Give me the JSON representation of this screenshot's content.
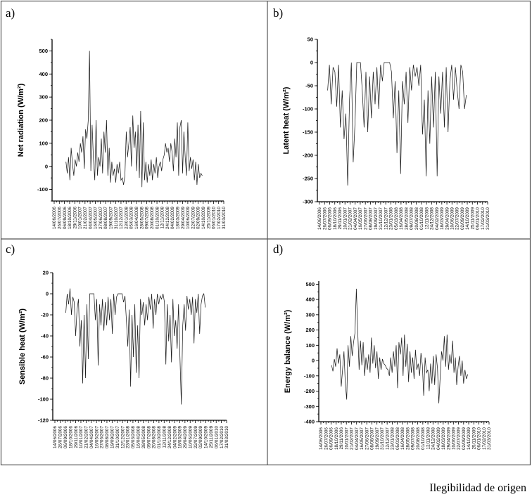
{
  "caption": "Ilegibilidad de origen",
  "chart_data": [
    {
      "type": "line",
      "panel_label": "a)",
      "title": "",
      "ylabel": "Net radiation (W/m²)",
      "ylim": [
        -150,
        550
      ],
      "yticks": [
        "-100",
        "0",
        "100",
        "200",
        "300",
        "400",
        "500"
      ],
      "ytick_values": [
        -100,
        0,
        100,
        200,
        300,
        400,
        500
      ],
      "xtick_labels": [
        "14/06/2006",
        "26/07/2006",
        "06/09/2006",
        "18/10/2006",
        "29/11/2006",
        "10/01/2007",
        "21/02/2007",
        "04/04/2007",
        "16/05/2007",
        "27/06/2007",
        "08/08/2007",
        "19/09/2007",
        "31/10/2007",
        "12/12/2007",
        "23/01/2008",
        "05/03/2008",
        "16/04/2008",
        "28/05/2008",
        "09/07/2008",
        "20/08/2008",
        "01/10/2008",
        "12/11/2008",
        "24/12/2008",
        "04/02/2009",
        "18/03/2009",
        "29/04/2009",
        "10/06/2009",
        "22/07/2009",
        "02/09/2009",
        "14/10/2009",
        "25/11/2009",
        "06/01/2010",
        "17/02/2010",
        "31/03/2010"
      ],
      "x_start": "2006-09-18",
      "x_end": "2009-10-06",
      "values": [
        20,
        -30,
        40,
        -60,
        80,
        10,
        -40,
        30,
        0,
        60,
        20,
        100,
        60,
        130,
        -10,
        160,
        120,
        200,
        500,
        -20,
        180,
        30,
        -60,
        200,
        -40,
        40,
        0,
        120,
        -30,
        150,
        60,
        200,
        -40,
        80,
        -70,
        20,
        -40,
        -10,
        -70,
        10,
        -30,
        20,
        -60,
        -50,
        -80,
        -40,
        150,
        40,
        100,
        170,
        0,
        220,
        80,
        150,
        -20,
        180,
        -50,
        240,
        -90,
        190,
        -60,
        20,
        -70,
        10,
        -40,
        30,
        -60,
        10,
        -30,
        40,
        -50,
        0,
        20,
        -20,
        30,
        50,
        100,
        60,
        80,
        20,
        100,
        60,
        -20,
        120,
        40,
        190,
        -40,
        170,
        200,
        -30,
        150,
        40,
        -40,
        190,
        -20,
        40,
        -10,
        30,
        -60,
        20,
        -80,
        10,
        -50,
        -30,
        -40
      ]
    },
    {
      "type": "line",
      "panel_label": "b)",
      "title": "",
      "ylabel": "Latent heat (W/m²)",
      "ylim": [
        -300,
        50
      ],
      "yticks": [
        "-300",
        "-250",
        "-200",
        "-150",
        "-100",
        "-50",
        "0",
        "50"
      ],
      "ytick_values": [
        -300,
        -250,
        -200,
        -150,
        -100,
        -50,
        0,
        50
      ],
      "xtick_labels": [
        "14/06/2006",
        "26/07/2006",
        "06/09/2006",
        "18/10/2006",
        "29/11/2006",
        "10/01/2007",
        "21/02/2007",
        "04/04/2007",
        "16/05/2007",
        "27/06/2007",
        "08/08/2007",
        "19/09/2007",
        "31/10/2007",
        "12/12/2007",
        "23/01/2008",
        "05/03/2008",
        "16/04/2008",
        "28/05/2008",
        "09/07/2008",
        "20/08/2008",
        "01/10/2008",
        "12/11/2008",
        "24/12/2008",
        "04/02/2009",
        "18/03/2009",
        "29/04/2009",
        "10/06/2009",
        "22/07/2009",
        "02/09/2009",
        "14/10/2009",
        "25/11/2009",
        "06/01/2010",
        "17/02/2010",
        "31/03/2010"
      ],
      "x_start": "2006-08-20",
      "x_end": "2009-10-06",
      "values": [
        -60,
        -5,
        -90,
        -10,
        -20,
        -95,
        -5,
        -140,
        -60,
        -165,
        -110,
        -265,
        -80,
        0,
        -215,
        -130,
        0,
        0,
        0,
        -60,
        -140,
        -20,
        -150,
        -30,
        -120,
        -20,
        -90,
        -10,
        -100,
        -5,
        -40,
        0,
        0,
        0,
        0,
        -20,
        -120,
        -40,
        -195,
        -60,
        -240,
        -40,
        -90,
        -20,
        -130,
        -10,
        -60,
        -5,
        -30,
        -10,
        -50,
        -5,
        -155,
        -80,
        -245,
        -60,
        -175,
        -30,
        -140,
        -20,
        -245,
        -30,
        -110,
        -20,
        -140,
        -10,
        -150,
        -40,
        -5,
        -80,
        -10,
        -60,
        -100,
        -5,
        -20,
        -100,
        -70
      ]
    },
    {
      "type": "line",
      "panel_label": "c)",
      "title": "",
      "ylabel": "Sensible heat (W/m²)",
      "ylim": [
        -120,
        20
      ],
      "yticks": [
        "-120",
        "-100",
        "-80",
        "-60",
        "-40",
        "-20",
        "0",
        "20"
      ],
      "ytick_values": [
        -120,
        -100,
        -80,
        -60,
        -40,
        -20,
        0,
        20
      ],
      "xtick_labels": [
        "14/06/2006",
        "26/07/2006",
        "06/09/2006",
        "18/10/2006",
        "29/11/2006",
        "10/01/2007",
        "21/02/2007",
        "04/04/2007",
        "16/05/2007",
        "27/06/2007",
        "08/08/2007",
        "19/09/2007",
        "31/10/2007",
        "12/12/2007",
        "23/01/2008",
        "05/03/2008",
        "16/04/2008",
        "28/05/2008",
        "09/07/2008",
        "20/08/2008",
        "01/10/2008",
        "12/11/2008",
        "24/12/2008",
        "04/02/2009",
        "18/03/2009",
        "29/04/2009",
        "10/06/2009",
        "22/07/2009",
        "02/09/2009",
        "14/10/2009",
        "25/11/2009",
        "06/01/2010",
        "17/02/2010",
        "31/03/2010"
      ],
      "x_start": "2006-09-10",
      "x_end": "2009-10-10",
      "values": [
        -18,
        0,
        -10,
        5,
        -20,
        -3,
        -8,
        -40,
        -15,
        -5,
        -50,
        -25,
        -85,
        -20,
        -80,
        -10,
        -62,
        0,
        0,
        0,
        0,
        -25,
        -5,
        -68,
        -10,
        -30,
        -5,
        -35,
        -8,
        -30,
        -3,
        -25,
        -5,
        -38,
        0,
        -20,
        -3,
        0,
        0,
        0,
        0,
        -8,
        -2,
        -25,
        -50,
        -15,
        -88,
        -20,
        -60,
        -10,
        -75,
        -30,
        -80,
        -5,
        -20,
        -8,
        -30,
        -10,
        -25,
        -3,
        -15,
        0,
        -33,
        -5,
        -20,
        0,
        -10,
        -2,
        -5,
        0,
        -8,
        -67,
        -10,
        -45,
        -20,
        -65,
        -5,
        -40,
        -25,
        -52,
        -10,
        -60,
        -105,
        -30,
        -10,
        -35,
        -2,
        -15,
        -5,
        -20,
        -3,
        -47,
        -5,
        -18,
        0,
        -38,
        -10,
        -2,
        0,
        -13
      ]
    },
    {
      "type": "line",
      "panel_label": "d)",
      "title": "",
      "ylabel": "Energy balance (W/m²)",
      "ylim": [
        -400,
        520
      ],
      "yticks": [
        "-400",
        "-300",
        "-200",
        "-100",
        "0",
        "100",
        "200",
        "300",
        "400",
        "500"
      ],
      "ytick_values": [
        -400,
        -300,
        -200,
        -100,
        0,
        100,
        200,
        300,
        400,
        500
      ],
      "xtick_labels": [
        "14/06/2006",
        "26/07/2006",
        "06/09/2006",
        "18/10/2006",
        "29/11/2006",
        "10/01/2007",
        "21/02/2007",
        "04/04/2007",
        "16/05/2007",
        "27/06/2007",
        "08/08/2007",
        "19/09/2007",
        "31/10/2007",
        "12/12/2007",
        "23/01/2008",
        "05/03/2008",
        "16/04/2008",
        "28/05/2008",
        "09/07/2008",
        "20/08/2008",
        "01/10/2008",
        "12/11/2008",
        "24/12/2008",
        "04/02/2009",
        "18/03/2009",
        "29/04/2009",
        "10/06/2009",
        "22/07/2009",
        "02/09/2009",
        "14/10/2009",
        "25/11/2009",
        "06/01/2010",
        "17/02/2010",
        "31/03/2010"
      ],
      "x_start": "2006-09-10",
      "x_end": "2009-10-06",
      "values": [
        -30,
        -70,
        10,
        -40,
        80,
        -20,
        40,
        -170,
        -60,
        60,
        -150,
        -255,
        100,
        -40,
        160,
        30,
        120,
        180,
        470,
        200,
        -60,
        130,
        -30,
        120,
        -100,
        20,
        -60,
        40,
        -80,
        150,
        -20,
        100,
        -50,
        60,
        -120,
        20,
        -60,
        10,
        -20,
        -30,
        -50,
        -60,
        -100,
        20,
        -80,
        60,
        -40,
        100,
        -180,
        120,
        40,
        150,
        -100,
        170,
        -40,
        110,
        -140,
        60,
        -80,
        20,
        -120,
        70,
        -60,
        -20,
        -100,
        50,
        -30,
        -230,
        20,
        -80,
        -60,
        -200,
        -20,
        -150,
        30,
        -160,
        40,
        -50,
        -280,
        -100,
        60,
        0,
        160,
        -40,
        170,
        -60,
        40,
        -20,
        130,
        -80,
        20,
        -160,
        -40,
        30,
        -100,
        0,
        -150,
        -60,
        -120,
        -90
      ]
    }
  ]
}
